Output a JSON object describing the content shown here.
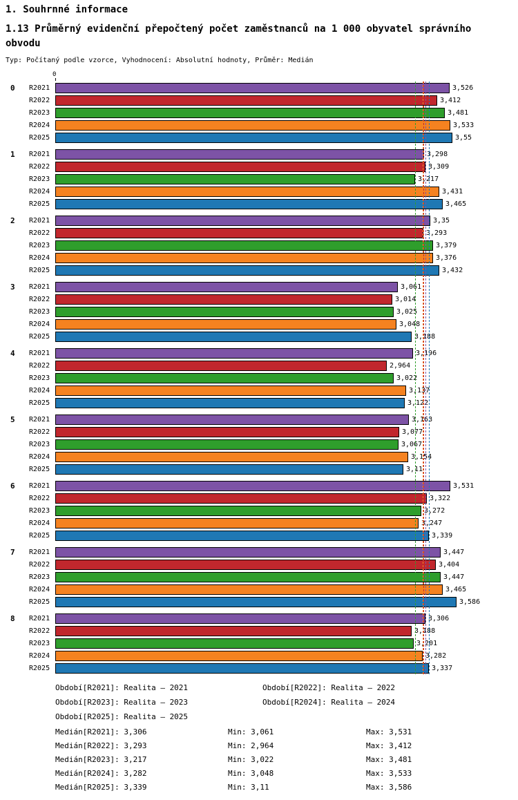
{
  "header": {
    "section_title": "1. Souhrnné informace",
    "chart_title": "1.13 Průměrný evidenční přepočtený počet zaměstnanců na 1 000 obyvatel správního obvodu",
    "subtitle": "Typ: Počítaný podle vzorce, Vyhodnocení: Absolutní hodnoty, Průměr: Medián"
  },
  "chart_data": {
    "type": "bar",
    "orientation": "horizontal",
    "title": "1.13 Průměrný evidenční přepočtený počet zaměstnanců na 1 000 obyvatel správního obvodu",
    "axis_origin_label": "0",
    "xlim": [
      0,
      3.7
    ],
    "grid": false,
    "legend_position": "bottom",
    "categories": [
      "0",
      "1",
      "2",
      "3",
      "4",
      "5",
      "6",
      "7",
      "8"
    ],
    "series": [
      {
        "name": "R2021",
        "color": "#7d53a6",
        "values": [
          3.526,
          3.298,
          3.35,
          3.061,
          3.196,
          3.163,
          3.531,
          3.447,
          3.306
        ],
        "labels": [
          "3,526",
          "3,298",
          "3,35",
          "3,061",
          "3,196",
          "3,163",
          "3,531",
          "3,447",
          "3,306"
        ],
        "median": 3.306
      },
      {
        "name": "R2022",
        "color": "#c1272d",
        "values": [
          3.412,
          3.309,
          3.293,
          3.014,
          2.964,
          3.077,
          3.322,
          3.404,
          3.188
        ],
        "labels": [
          "3,412",
          "3,309",
          "3,293",
          "3,014",
          "2,964",
          "3,077",
          "3,322",
          "3,404",
          "3,188"
        ],
        "median": 3.293
      },
      {
        "name": "R2023",
        "color": "#2f9e2c",
        "values": [
          3.481,
          3.217,
          3.379,
          3.025,
          3.022,
          3.067,
          3.272,
          3.447,
          3.201
        ],
        "labels": [
          "3,481",
          "3,217",
          "3,379",
          "3,025",
          "3,022",
          "3,067",
          "3,272",
          "3,447",
          "3,201"
        ],
        "median": 3.217
      },
      {
        "name": "R2024",
        "color": "#f58220",
        "values": [
          3.533,
          3.431,
          3.376,
          3.048,
          3.137,
          3.154,
          3.247,
          3.465,
          3.282
        ],
        "labels": [
          "3,533",
          "3,431",
          "3,376",
          "3,048",
          "3,137",
          "3,154",
          "3,247",
          "3,465",
          "3,282"
        ],
        "median": 3.282
      },
      {
        "name": "R2025",
        "color": "#1f78b4",
        "values": [
          3.55,
          3.465,
          3.432,
          3.188,
          3.122,
          3.11,
          3.339,
          3.586,
          3.337
        ],
        "labels": [
          "3,55",
          "3,465",
          "3,432",
          "3,188",
          "3,122",
          "3,11",
          "3,339",
          "3,586",
          "3,337"
        ],
        "median": 3.339
      }
    ]
  },
  "legend": [
    "Období[R2021]: Realita – 2021",
    "Období[R2022]: Realita – 2022",
    "Období[R2023]: Realita – 2023",
    "Období[R2024]: Realita – 2024",
    "Období[R2025]: Realita – 2025"
  ],
  "stats": [
    {
      "median": "Medián[R2021]: 3,306",
      "min": "Min: 3,061",
      "max": "Max: 3,531"
    },
    {
      "median": "Medián[R2022]: 3,293",
      "min": "Min: 2,964",
      "max": "Max: 3,412"
    },
    {
      "median": "Medián[R2023]: 3,217",
      "min": "Min: 3,022",
      "max": "Max: 3,481"
    },
    {
      "median": "Medián[R2024]: 3,282",
      "min": "Min: 3,048",
      "max": "Max: 3,533"
    },
    {
      "median": "Medián[R2025]: 3,339",
      "min": "Min: 3,11",
      "max": "Max: 3,586"
    }
  ]
}
